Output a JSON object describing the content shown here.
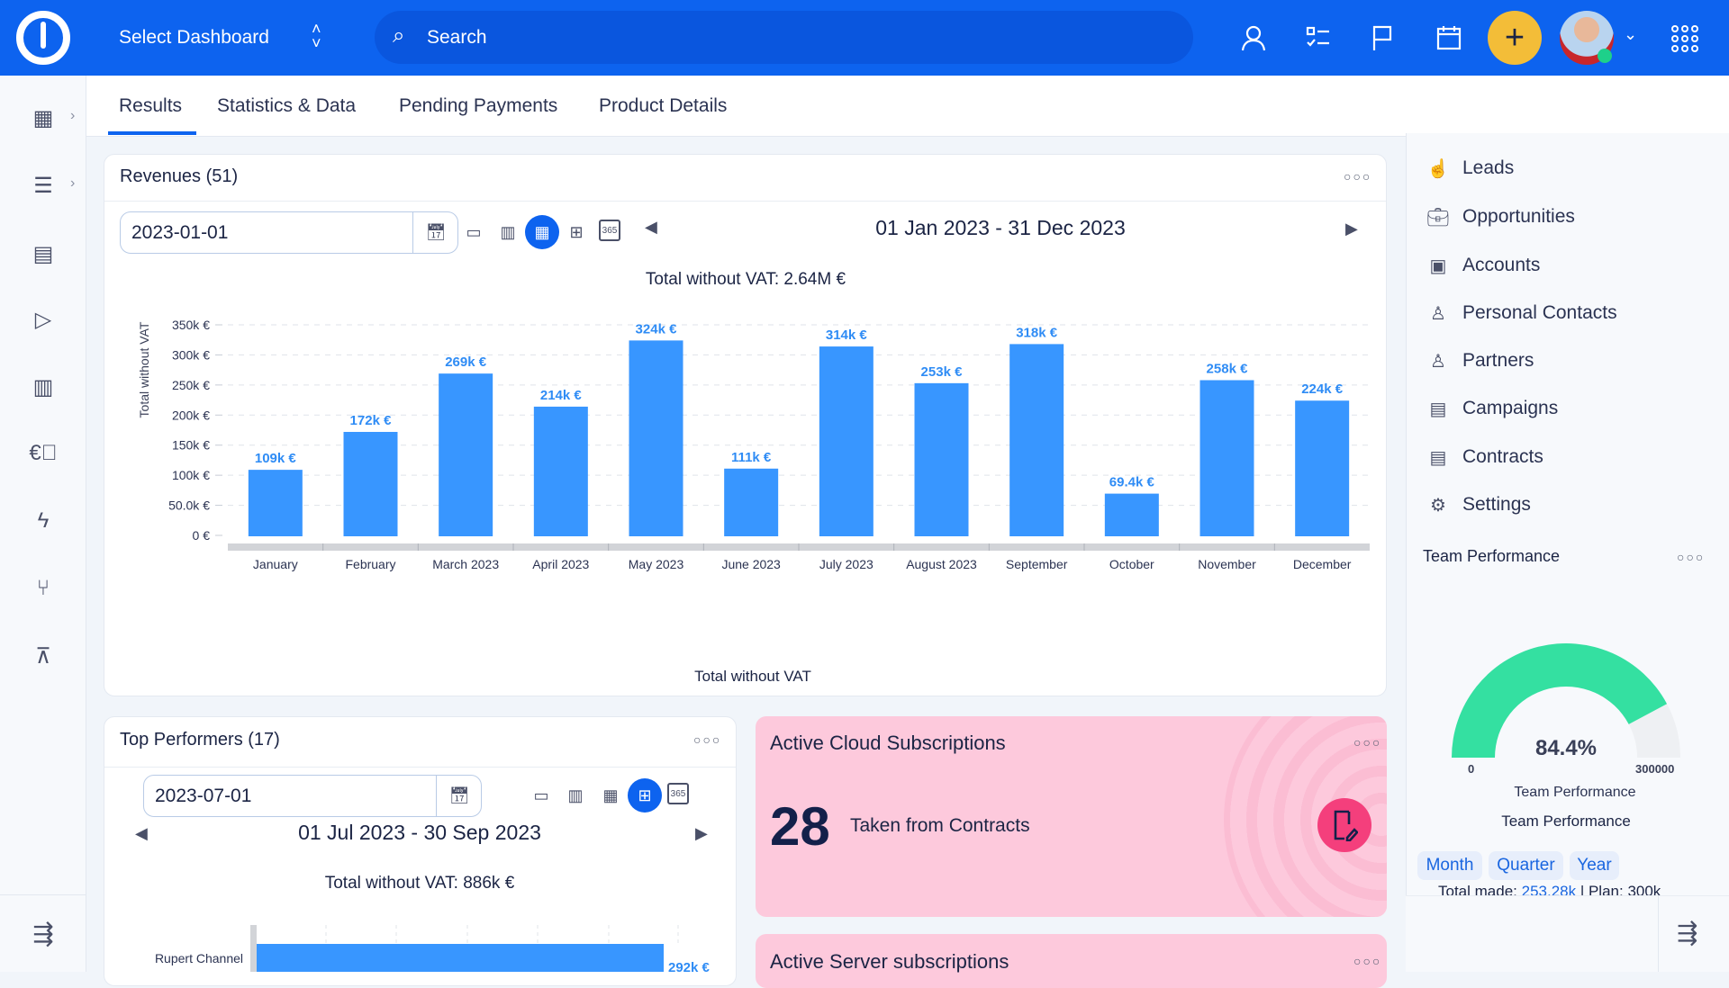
{
  "header": {
    "dashboard_select": "Select Dashboard",
    "search_placeholder": "Search",
    "icons": [
      "user-icon",
      "tasks-icon",
      "flag-icon",
      "calendar-icon",
      "add-icon",
      "avatar",
      "chevron-down-icon",
      "apps-grid-icon"
    ]
  },
  "colors": {
    "brand": "#0d63ef",
    "bar": "#3896ff",
    "gauge": "#34e0a1",
    "add_button": "#f3bd38",
    "pink_card": "#fdc9dc",
    "pink_icon": "#f43f7c"
  },
  "tabs": [
    {
      "label": "Results",
      "active": true
    },
    {
      "label": "Statistics & Data"
    },
    {
      "label": "Pending Payments"
    },
    {
      "label": "Product Details"
    }
  ],
  "revenues": {
    "title": "Revenues (51)",
    "date": "2023-01-01",
    "range": "01 Jan 2023 - 31 Dec 2023",
    "total": "Total without VAT: 2.64M €",
    "footer": "Total without VAT"
  },
  "top_performers": {
    "title": "Top Performers (17)",
    "date": "2023-07-01",
    "range": "01 Jul 2023 - 30 Sep 2023",
    "total": "Total without VAT: 886k €"
  },
  "cloud": {
    "title": "Active Cloud Subscriptions",
    "value": "28",
    "caption": "Taken from Contracts"
  },
  "server": {
    "title": "Active Server subscriptions"
  },
  "right_menu": [
    {
      "label": "Leads",
      "icon": "lead-icon"
    },
    {
      "label": "Opportunities",
      "icon": "briefcase-icon"
    },
    {
      "label": "Accounts",
      "icon": "accounts-icon"
    },
    {
      "label": "Personal Contacts",
      "icon": "person-icon"
    },
    {
      "label": "Partners",
      "icon": "partner-icon"
    },
    {
      "label": "Campaigns",
      "icon": "campaign-icon"
    },
    {
      "label": "Contracts",
      "icon": "contract-icon"
    },
    {
      "label": "Settings",
      "icon": "settings-icon"
    }
  ],
  "team": {
    "title": "Team Performance",
    "percent": "84.4%",
    "value_fraction": 0.844,
    "min": "0",
    "max": "300000",
    "gauge_label": "Team Performance",
    "subtitle": "Team Performance",
    "periods": [
      "Month",
      "Quarter",
      "Year"
    ],
    "total_made_label": "Total made: ",
    "total_made": "253.28k",
    "plan": " | Plan: 300k"
  },
  "chart_data": [
    {
      "type": "bar",
      "title": "Total without VAT: 2.64M €",
      "ylabel": "Total without VAT",
      "xlabel": "Total without VAT",
      "ylim": [
        0,
        350000
      ],
      "grid": true,
      "categories": [
        "January",
        "February",
        "March 2023",
        "April 2023",
        "May 2023",
        "June 2023",
        "July 2023",
        "August 2023",
        "September",
        "October",
        "November",
        "December"
      ],
      "values": [
        109000,
        172000,
        269000,
        214000,
        324000,
        111000,
        314000,
        253000,
        318000,
        69400,
        258000,
        224000
      ],
      "data_labels": [
        "109k €",
        "172k €",
        "269k €",
        "214k €",
        "324k €",
        "111k €",
        "314k €",
        "253k €",
        "318k €",
        "69.4k €",
        "258k €",
        "224k €"
      ],
      "yticks": [
        0,
        50000,
        100000,
        150000,
        200000,
        250000,
        300000,
        350000
      ],
      "ytick_labels": [
        "0 €",
        "50.0k €",
        "100k €",
        "150k €",
        "200k €",
        "250k €",
        "300k €",
        "350k €"
      ]
    },
    {
      "type": "bar",
      "orientation": "horizontal",
      "title": "Total without VAT: 886k €",
      "categories": [
        "Rupert Channel"
      ],
      "values": [
        292000
      ],
      "data_labels": [
        "292k €"
      ]
    }
  ]
}
